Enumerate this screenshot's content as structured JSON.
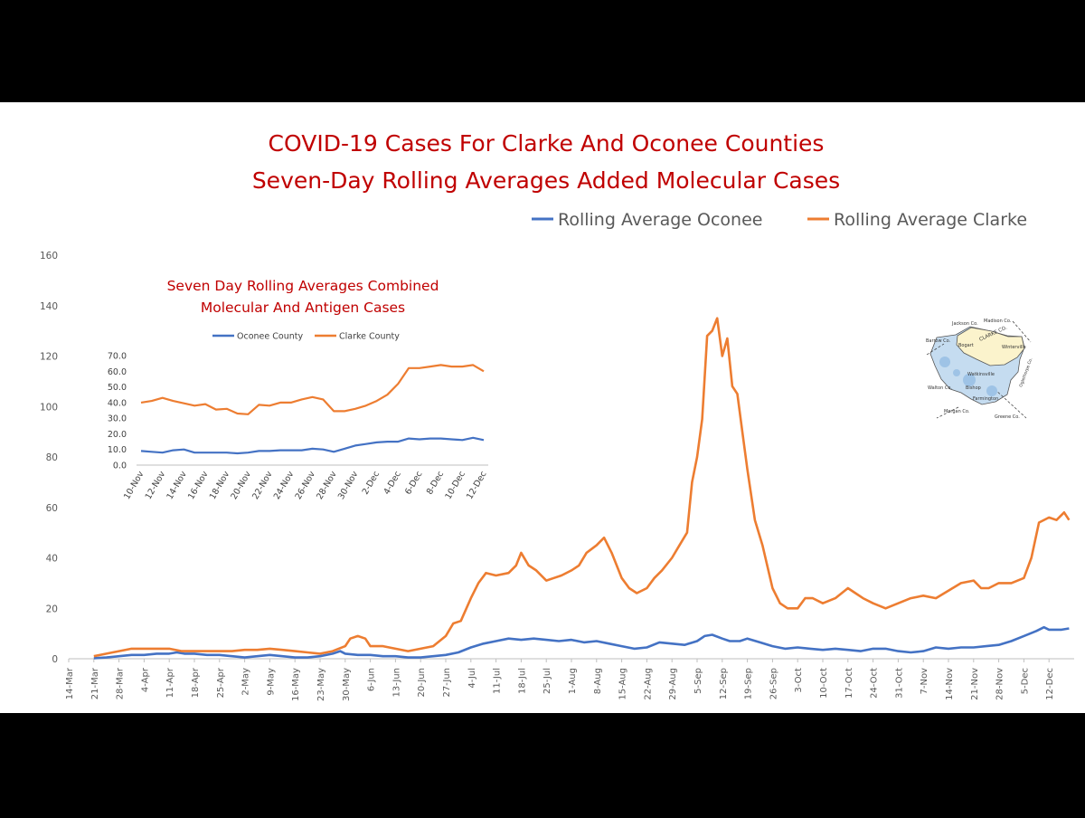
{
  "chart_data": [
    {
      "type": "line",
      "title": "COVID-19 Cases For Clarke And Oconee Counties",
      "subtitle": "Seven-Day Rolling Averages Added Molecular Cases",
      "legend_position": "top-right",
      "ylim": [
        0,
        160
      ],
      "yticks": [
        "0",
        "20",
        "40",
        "60",
        "80",
        "100",
        "120",
        "140",
        "160"
      ],
      "xticks": [
        "14-Mar",
        "21-Mar",
        "28-Mar",
        "4-Apr",
        "11-Apr",
        "18-Apr",
        "25-Apr",
        "2-May",
        "9-May",
        "16-May",
        "23-May",
        "30-May",
        "6-Jun",
        "13-Jun",
        "20-Jun",
        "27-Jun",
        "4-Jul",
        "11-Jul",
        "18-Jul",
        "25-Jul",
        "1-Aug",
        "8-Aug",
        "15-Aug",
        "22-Aug",
        "29-Aug",
        "5-Sep",
        "12-Sep",
        "19-Sep",
        "26-Sep",
        "3-Oct",
        "10-Oct",
        "17-Oct",
        "24-Oct",
        "31-Oct",
        "7-Nov",
        "14-Nov",
        "21-Nov",
        "28-Nov",
        "5-Dec",
        "12-Dec"
      ],
      "x_unit": "week",
      "series": [
        {
          "name": "Rolling Average Oconee",
          "color": "#4472C4",
          "points": [
            [
              1.0,
              0.2
            ],
            [
              1.5,
              0.5
            ],
            [
              2.0,
              1
            ],
            [
              2.5,
              1.5
            ],
            [
              3.0,
              1.5
            ],
            [
              3.5,
              2
            ],
            [
              4.0,
              2
            ],
            [
              4.3,
              2.5
            ],
            [
              4.6,
              2
            ],
            [
              5.0,
              2
            ],
            [
              5.5,
              1.5
            ],
            [
              6.0,
              1.5
            ],
            [
              6.5,
              1
            ],
            [
              7.0,
              0.5
            ],
            [
              7.5,
              1
            ],
            [
              8.0,
              1.5
            ],
            [
              8.5,
              1
            ],
            [
              9.0,
              0.5
            ],
            [
              9.5,
              0.5
            ],
            [
              10.0,
              1
            ],
            [
              10.5,
              2
            ],
            [
              10.8,
              3
            ],
            [
              11.0,
              2
            ],
            [
              11.5,
              1.5
            ],
            [
              12.0,
              1.5
            ],
            [
              12.5,
              1
            ],
            [
              13.0,
              1
            ],
            [
              13.5,
              0.5
            ],
            [
              14.0,
              0.5
            ],
            [
              14.5,
              1
            ],
            [
              15.0,
              1.5
            ],
            [
              15.5,
              2.5
            ],
            [
              16.0,
              4.5
            ],
            [
              16.5,
              6
            ],
            [
              17.0,
              7
            ],
            [
              17.5,
              8
            ],
            [
              18.0,
              7.5
            ],
            [
              18.5,
              8
            ],
            [
              19.0,
              7.5
            ],
            [
              19.5,
              7
            ],
            [
              20.0,
              7.5
            ],
            [
              20.5,
              6.5
            ],
            [
              21.0,
              7
            ],
            [
              21.5,
              6
            ],
            [
              22.0,
              5
            ],
            [
              22.5,
              4
            ],
            [
              23.0,
              4.5
            ],
            [
              23.5,
              6.5
            ],
            [
              24.0,
              6
            ],
            [
              24.5,
              5.5
            ],
            [
              25.0,
              7
            ],
            [
              25.3,
              9
            ],
            [
              25.6,
              9.5
            ],
            [
              26.0,
              8
            ],
            [
              26.3,
              7
            ],
            [
              26.7,
              7
            ],
            [
              27.0,
              8
            ],
            [
              27.5,
              6.5
            ],
            [
              28.0,
              5
            ],
            [
              28.5,
              4
            ],
            [
              29.0,
              4.5
            ],
            [
              29.5,
              4
            ],
            [
              30.0,
              3.5
            ],
            [
              30.5,
              4
            ],
            [
              31.0,
              3.5
            ],
            [
              31.5,
              3
            ],
            [
              32.0,
              4
            ],
            [
              32.5,
              4
            ],
            [
              33.0,
              3
            ],
            [
              33.5,
              2.5
            ],
            [
              34.0,
              3
            ],
            [
              34.5,
              4.5
            ],
            [
              35.0,
              4
            ],
            [
              35.5,
              4.5
            ],
            [
              36.0,
              4.5
            ],
            [
              36.5,
              5
            ],
            [
              37.0,
              5.5
            ],
            [
              37.5,
              7
            ],
            [
              38.0,
              9
            ],
            [
              38.5,
              11
            ],
            [
              38.8,
              12.5
            ],
            [
              39.0,
              11.5
            ],
            [
              39.5,
              11.5
            ],
            [
              39.8,
              12
            ]
          ]
        },
        {
          "name": "Rolling Average Clarke",
          "color": "#ED7D31",
          "points": [
            [
              1.0,
              1
            ],
            [
              1.5,
              2
            ],
            [
              2.0,
              3
            ],
            [
              2.5,
              4
            ],
            [
              3.0,
              4
            ],
            [
              3.5,
              4
            ],
            [
              4.0,
              4
            ],
            [
              4.5,
              3
            ],
            [
              5.0,
              3
            ],
            [
              5.5,
              3
            ],
            [
              6.0,
              3
            ],
            [
              6.5,
              3
            ],
            [
              7.0,
              3.5
            ],
            [
              7.5,
              3.5
            ],
            [
              8.0,
              4
            ],
            [
              8.5,
              3.5
            ],
            [
              9.0,
              3
            ],
            [
              9.5,
              2.5
            ],
            [
              10.0,
              2
            ],
            [
              10.5,
              3
            ],
            [
              11.0,
              5
            ],
            [
              11.2,
              8
            ],
            [
              11.5,
              9
            ],
            [
              11.8,
              8
            ],
            [
              12.0,
              5
            ],
            [
              12.5,
              5
            ],
            [
              13.0,
              4
            ],
            [
              13.5,
              3
            ],
            [
              14.0,
              4
            ],
            [
              14.5,
              5
            ],
            [
              15.0,
              9
            ],
            [
              15.3,
              14
            ],
            [
              15.6,
              15
            ],
            [
              16.0,
              24
            ],
            [
              16.3,
              30
            ],
            [
              16.6,
              34
            ],
            [
              17.0,
              33
            ],
            [
              17.5,
              34
            ],
            [
              17.8,
              37
            ],
            [
              18.0,
              42
            ],
            [
              18.3,
              37
            ],
            [
              18.6,
              35
            ],
            [
              19.0,
              31
            ],
            [
              19.3,
              32
            ],
            [
              19.6,
              33
            ],
            [
              20.0,
              35
            ],
            [
              20.3,
              37
            ],
            [
              20.6,
              42
            ],
            [
              21.0,
              45
            ],
            [
              21.3,
              48
            ],
            [
              21.6,
              42
            ],
            [
              22.0,
              32
            ],
            [
              22.3,
              28
            ],
            [
              22.6,
              26
            ],
            [
              23.0,
              28
            ],
            [
              23.3,
              32
            ],
            [
              23.6,
              35
            ],
            [
              24.0,
              40
            ],
            [
              24.3,
              45
            ],
            [
              24.6,
              50
            ],
            [
              24.8,
              70
            ],
            [
              25.0,
              80
            ],
            [
              25.2,
              95
            ],
            [
              25.4,
              128
            ],
            [
              25.6,
              130
            ],
            [
              25.8,
              135
            ],
            [
              26.0,
              120
            ],
            [
              26.2,
              127
            ],
            [
              26.4,
              108
            ],
            [
              26.6,
              105
            ],
            [
              26.8,
              90
            ],
            [
              27.0,
              75
            ],
            [
              27.3,
              55
            ],
            [
              27.6,
              45
            ],
            [
              28.0,
              28
            ],
            [
              28.3,
              22
            ],
            [
              28.6,
              20
            ],
            [
              29.0,
              20
            ],
            [
              29.3,
              24
            ],
            [
              29.6,
              24
            ],
            [
              30.0,
              22
            ],
            [
              30.5,
              24
            ],
            [
              31.0,
              28
            ],
            [
              31.3,
              26
            ],
            [
              31.6,
              24
            ],
            [
              32.0,
              22
            ],
            [
              32.5,
              20
            ],
            [
              33.0,
              22
            ],
            [
              33.5,
              24
            ],
            [
              34.0,
              25
            ],
            [
              34.5,
              24
            ],
            [
              35.0,
              27
            ],
            [
              35.5,
              30
            ],
            [
              36.0,
              31
            ],
            [
              36.3,
              28
            ],
            [
              36.6,
              28
            ],
            [
              37.0,
              30
            ],
            [
              37.5,
              30
            ],
            [
              38.0,
              32
            ],
            [
              38.3,
              40
            ],
            [
              38.6,
              54
            ],
            [
              39.0,
              56
            ],
            [
              39.3,
              55
            ],
            [
              39.6,
              58
            ],
            [
              39.8,
              55
            ]
          ]
        }
      ]
    },
    {
      "type": "line",
      "title": "Seven Day Rolling Averages Combined Molecular And Antigen Cases",
      "legend_position": "top",
      "ylim": [
        0,
        70
      ],
      "yticks": [
        "0.0",
        "10.0",
        "20.0",
        "30.0",
        "40.0",
        "50.0",
        "60.0",
        "70.0"
      ],
      "xticks": [
        "10-Nov",
        "12-Nov",
        "14-Nov",
        "16-Nov",
        "18-Nov",
        "20-Nov",
        "22-Nov",
        "24-Nov",
        "26-Nov",
        "28-Nov",
        "30-Nov",
        "2-Dec",
        "4-Dec",
        "6-Dec",
        "8-Dec",
        "10-Dec",
        "12-Dec"
      ],
      "series": [
        {
          "name": "Oconee County",
          "color": "#4472C4",
          "values": [
            9,
            8.5,
            8,
            9.5,
            10,
            8,
            8,
            8,
            8,
            7.5,
            8,
            9,
            9,
            9.5,
            9.5,
            9.5,
            10.5,
            10,
            8.5,
            10.5,
            12.5,
            13.5,
            14.5,
            15,
            15,
            17,
            16.5,
            17,
            17,
            16.5,
            16,
            17.5,
            16
          ]
        },
        {
          "name": "Clarke County",
          "color": "#ED7D31",
          "values": [
            40,
            41,
            43,
            41,
            39.5,
            38,
            39,
            35.5,
            36,
            33,
            32.5,
            38.5,
            38,
            40,
            40,
            42,
            43.5,
            42,
            34.5,
            34.5,
            36,
            38,
            41,
            45,
            52,
            62,
            62,
            63,
            64,
            63,
            63,
            64,
            60
          ]
        }
      ]
    }
  ],
  "map_inset": {
    "labels": [
      "Jackson Co.",
      "Madison Co.",
      "Barrow Co.",
      "CLARKE CO.",
      "Bogart",
      "Winterville",
      "Watkinsville",
      "Bishop",
      "Farmington",
      "Walton Co.",
      "Morgan Co.",
      "Greene Co.",
      "Oglethorpe Co."
    ]
  }
}
